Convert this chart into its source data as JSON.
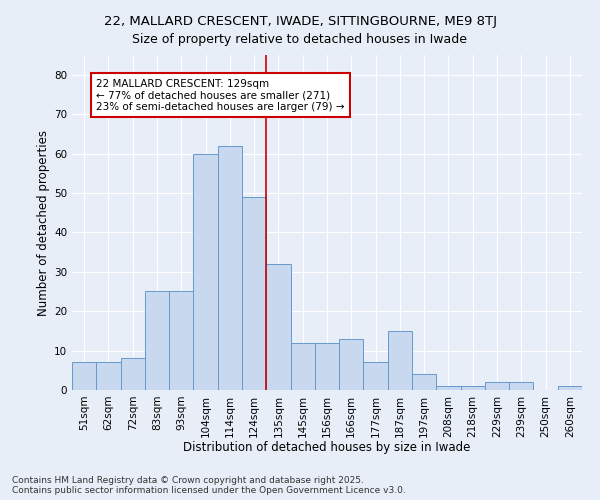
{
  "title": "22, MALLARD CRESCENT, IWADE, SITTINGBOURNE, ME9 8TJ",
  "subtitle": "Size of property relative to detached houses in Iwade",
  "xlabel": "Distribution of detached houses by size in Iwade",
  "ylabel": "Number of detached properties",
  "categories": [
    "51sqm",
    "62sqm",
    "72sqm",
    "83sqm",
    "93sqm",
    "104sqm",
    "114sqm",
    "124sqm",
    "135sqm",
    "145sqm",
    "156sqm",
    "166sqm",
    "177sqm",
    "187sqm",
    "197sqm",
    "208sqm",
    "218sqm",
    "229sqm",
    "239sqm",
    "250sqm",
    "260sqm"
  ],
  "values": [
    7,
    7,
    8,
    25,
    25,
    60,
    62,
    49,
    32,
    12,
    12,
    13,
    7,
    15,
    4,
    1,
    1,
    2,
    2,
    0,
    1
  ],
  "bar_color": "#c8d8ee",
  "bar_edge_color": "#6699cc",
  "bar_edge_width": 0.7,
  "vline_x": 7.5,
  "vline_color": "#cc0000",
  "annotation_text": "22 MALLARD CRESCENT: 129sqm\n← 77% of detached houses are smaller (271)\n23% of semi-detached houses are larger (79) →",
  "annotation_box_color": "#cc0000",
  "annotation_bg_color": "#ffffff",
  "ylim": [
    0,
    85
  ],
  "yticks": [
    0,
    10,
    20,
    30,
    40,
    50,
    60,
    70,
    80
  ],
  "background_color": "#e8eef8",
  "plot_bg_color": "#e8eef8",
  "grid_color": "#ffffff",
  "footer_text": "Contains HM Land Registry data © Crown copyright and database right 2025.\nContains public sector information licensed under the Open Government Licence v3.0.",
  "title_fontsize": 9.5,
  "subtitle_fontsize": 9,
  "xlabel_fontsize": 8.5,
  "ylabel_fontsize": 8.5,
  "tick_fontsize": 7.5,
  "annotation_fontsize": 7.5,
  "footer_fontsize": 6.5
}
